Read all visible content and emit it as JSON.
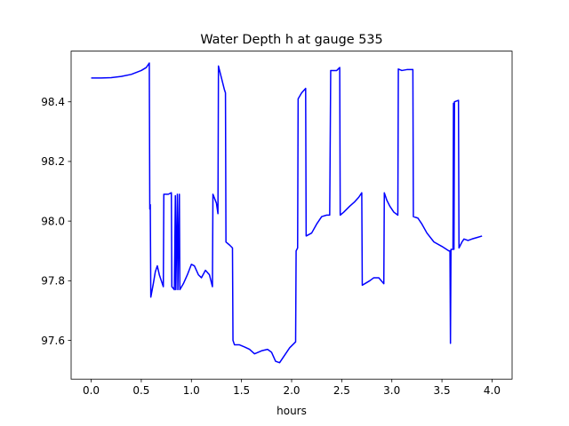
{
  "chart_data": {
    "type": "line",
    "title": "Water Depth h at gauge 535",
    "xlabel": "hours",
    "ylabel": "",
    "xlim": [
      -0.2,
      4.2
    ],
    "ylim": [
      97.47,
      98.57
    ],
    "xticks": [
      0.0,
      0.5,
      1.0,
      1.5,
      2.0,
      2.5,
      3.0,
      3.5,
      4.0
    ],
    "xtick_labels": [
      "0.0",
      "0.5",
      "1.0",
      "1.5",
      "2.0",
      "2.5",
      "3.0",
      "3.5",
      "4.0"
    ],
    "yticks": [
      97.6,
      97.8,
      98.0,
      98.2,
      98.4
    ],
    "ytick_labels": [
      "97.6",
      "97.8",
      "98.0",
      "98.2",
      "98.4"
    ],
    "grid": false,
    "series": [
      {
        "color": "#0000ff",
        "points": [
          [
            0.0,
            98.48
          ],
          [
            0.1,
            98.48
          ],
          [
            0.2,
            98.481
          ],
          [
            0.3,
            98.485
          ],
          [
            0.4,
            98.492
          ],
          [
            0.5,
            98.505
          ],
          [
            0.55,
            98.515
          ],
          [
            0.58,
            98.53
          ],
          [
            0.585,
            98.04
          ],
          [
            0.59,
            98.055
          ],
          [
            0.595,
            97.745
          ],
          [
            0.62,
            97.79
          ],
          [
            0.64,
            97.83
          ],
          [
            0.66,
            97.85
          ],
          [
            0.68,
            97.82
          ],
          [
            0.72,
            97.78
          ],
          [
            0.725,
            98.09
          ],
          [
            0.77,
            98.09
          ],
          [
            0.8,
            98.095
          ],
          [
            0.805,
            97.78
          ],
          [
            0.83,
            97.77
          ],
          [
            0.84,
            98.085
          ],
          [
            0.845,
            97.77
          ],
          [
            0.86,
            98.09
          ],
          [
            0.865,
            97.77
          ],
          [
            0.88,
            98.09
          ],
          [
            0.885,
            97.77
          ],
          [
            0.92,
            97.79
          ],
          [
            0.96,
            97.82
          ],
          [
            1.0,
            97.855
          ],
          [
            1.03,
            97.85
          ],
          [
            1.07,
            97.82
          ],
          [
            1.1,
            97.81
          ],
          [
            1.14,
            97.835
          ],
          [
            1.18,
            97.82
          ],
          [
            1.21,
            97.78
          ],
          [
            1.215,
            98.09
          ],
          [
            1.25,
            98.06
          ],
          [
            1.265,
            98.025
          ],
          [
            1.27,
            98.52
          ],
          [
            1.3,
            98.48
          ],
          [
            1.33,
            98.44
          ],
          [
            1.34,
            98.43
          ],
          [
            1.345,
            97.93
          ],
          [
            1.38,
            97.92
          ],
          [
            1.41,
            97.91
          ],
          [
            1.415,
            97.6
          ],
          [
            1.43,
            97.585
          ],
          [
            1.48,
            97.585
          ],
          [
            1.53,
            97.578
          ],
          [
            1.58,
            97.57
          ],
          [
            1.63,
            97.555
          ],
          [
            1.7,
            97.565
          ],
          [
            1.76,
            97.57
          ],
          [
            1.8,
            97.56
          ],
          [
            1.84,
            97.53
          ],
          [
            1.88,
            97.525
          ],
          [
            1.93,
            97.55
          ],
          [
            1.98,
            97.575
          ],
          [
            2.04,
            97.595
          ],
          [
            2.045,
            97.9
          ],
          [
            2.06,
            97.91
          ],
          [
            2.065,
            98.41
          ],
          [
            2.1,
            98.43
          ],
          [
            2.14,
            98.445
          ],
          [
            2.145,
            97.95
          ],
          [
            2.2,
            97.96
          ],
          [
            2.25,
            97.99
          ],
          [
            2.3,
            98.015
          ],
          [
            2.35,
            98.02
          ],
          [
            2.38,
            98.02
          ],
          [
            2.39,
            98.505
          ],
          [
            2.45,
            98.505
          ],
          [
            2.48,
            98.515
          ],
          [
            2.485,
            98.02
          ],
          [
            2.52,
            98.03
          ],
          [
            2.58,
            98.05
          ],
          [
            2.63,
            98.065
          ],
          [
            2.67,
            98.08
          ],
          [
            2.7,
            98.095
          ],
          [
            2.705,
            97.785
          ],
          [
            2.73,
            97.79
          ],
          [
            2.78,
            97.8
          ],
          [
            2.82,
            97.81
          ],
          [
            2.87,
            97.81
          ],
          [
            2.92,
            97.79
          ],
          [
            2.925,
            98.095
          ],
          [
            2.95,
            98.07
          ],
          [
            2.98,
            98.05
          ],
          [
            3.02,
            98.03
          ],
          [
            3.06,
            98.02
          ],
          [
            3.065,
            98.51
          ],
          [
            3.1,
            98.505
          ],
          [
            3.15,
            98.508
          ],
          [
            3.21,
            98.508
          ],
          [
            3.215,
            98.015
          ],
          [
            3.26,
            98.01
          ],
          [
            3.3,
            97.99
          ],
          [
            3.35,
            97.96
          ],
          [
            3.42,
            97.93
          ],
          [
            3.5,
            97.915
          ],
          [
            3.57,
            97.9
          ],
          [
            3.58,
            97.9
          ],
          [
            3.585,
            97.59
          ],
          [
            3.59,
            97.905
          ],
          [
            3.61,
            97.905
          ],
          [
            3.615,
            98.395
          ],
          [
            3.62,
            97.905
          ],
          [
            3.625,
            98.4
          ],
          [
            3.665,
            98.405
          ],
          [
            3.67,
            97.91
          ],
          [
            3.7,
            97.93
          ],
          [
            3.72,
            97.94
          ],
          [
            3.76,
            97.935
          ],
          [
            3.8,
            97.94
          ],
          [
            3.85,
            97.945
          ],
          [
            3.9,
            97.95
          ]
        ]
      }
    ]
  }
}
